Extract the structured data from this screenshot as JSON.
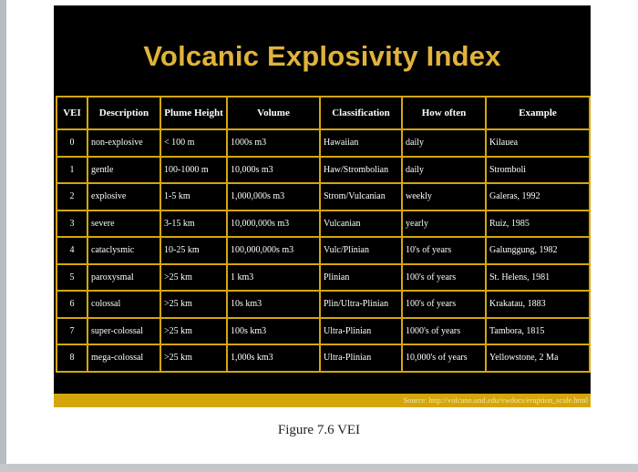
{
  "title": "Volcanic Explosivity Index",
  "table": {
    "headers": [
      "VEI",
      "Description",
      "Plume Height",
      "Volume",
      "Classification",
      "How often",
      "Example"
    ],
    "rows": [
      [
        "0",
        "non-explosive",
        "< 100 m",
        "1000s m3",
        "Hawaiian",
        "daily",
        "Kilauea"
      ],
      [
        "1",
        "gentle",
        "100-1000 m",
        "10,000s m3",
        "Haw/Strombolian",
        "daily",
        "Stromboli"
      ],
      [
        "2",
        "explosive",
        "1-5 km",
        "1,000,000s m3",
        "Strom/Vulcanian",
        "weekly",
        "Galeras, 1992"
      ],
      [
        "3",
        "severe",
        "3-15 km",
        "10,000,000s m3",
        "Vulcanian",
        "yearly",
        "Ruiz, 1985"
      ],
      [
        "4",
        "cataclysmic",
        "10-25 km",
        "100,000,000s m3",
        "Vulc/Plinian",
        "10's of years",
        "Galunggung, 1982"
      ],
      [
        "5",
        "paroxysmal",
        ">25 km",
        "1 km3",
        "Plinian",
        "100's of years",
        "St. Helens, 1981"
      ],
      [
        "6",
        "colossal",
        ">25 km",
        "10s km3",
        "Plin/Ultra-Plinian",
        "100's of years",
        "Krakatau, 1883"
      ],
      [
        "7",
        "super-colossal",
        ">25 km",
        "100s km3",
        "Ultra-Plinian",
        "1000's of years",
        "Tambora, 1815"
      ],
      [
        "8",
        "mega-colossal",
        ">25 km",
        "1,000s km3",
        "Ultra-Plinian",
        "10,000's of years",
        "Yellowstone, 2 Ma"
      ]
    ]
  },
  "source": "Source: http://volcano.und.edu/vwdocs/eruption_scale.html",
  "caption": "Figure 7.6 VEI",
  "colors": {
    "slide_background": "#000000",
    "border_gold": "#d5a60c",
    "title_gold": "#e1b33b"
  }
}
